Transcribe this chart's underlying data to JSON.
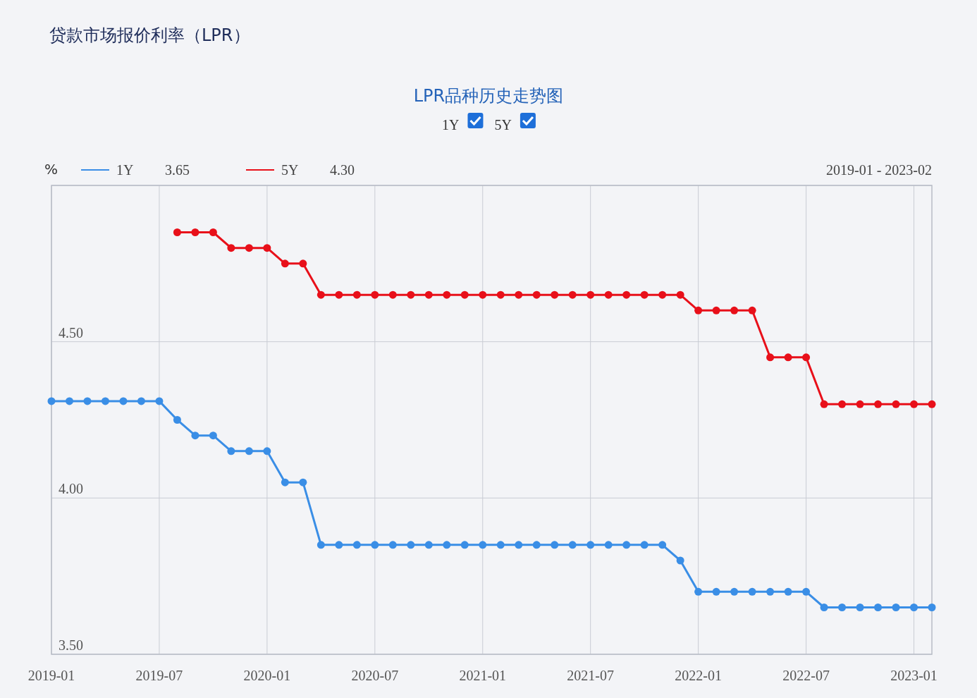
{
  "chart_data": {
    "type": "line",
    "title": "贷款市场报价利率（LPR）",
    "subtitle": "LPR品种历史走势图",
    "ylabel": "%",
    "annotations": [
      "3.65",
      "4.30",
      "2019-01 - 2023-02"
    ],
    "x": [
      "2019-01",
      "2019-02",
      "2019-03",
      "2019-04",
      "2019-05",
      "2019-06",
      "2019-07",
      "2019-08",
      "2019-09",
      "2019-10",
      "2019-11",
      "2019-12",
      "2020-01",
      "2020-02",
      "2020-03",
      "2020-04",
      "2020-05",
      "2020-06",
      "2020-07",
      "2020-08",
      "2020-09",
      "2020-10",
      "2020-11",
      "2020-12",
      "2021-01",
      "2021-02",
      "2021-03",
      "2021-04",
      "2021-05",
      "2021-06",
      "2021-07",
      "2021-08",
      "2021-09",
      "2021-10",
      "2021-11",
      "2021-12",
      "2022-01",
      "2022-02",
      "2022-03",
      "2022-04",
      "2022-05",
      "2022-06",
      "2022-07",
      "2022-08",
      "2022-09",
      "2022-10",
      "2022-11",
      "2022-12",
      "2023-01",
      "2023-02"
    ],
    "series": [
      {
        "name": "1Y",
        "color": "#3a8ee6",
        "values": [
          4.31,
          4.31,
          4.31,
          4.31,
          4.31,
          4.31,
          4.31,
          4.25,
          4.2,
          4.2,
          4.15,
          4.15,
          4.15,
          4.05,
          4.05,
          3.85,
          3.85,
          3.85,
          3.85,
          3.85,
          3.85,
          3.85,
          3.85,
          3.85,
          3.85,
          3.85,
          3.85,
          3.85,
          3.85,
          3.85,
          3.85,
          3.85,
          3.85,
          3.85,
          3.85,
          3.8,
          3.7,
          3.7,
          3.7,
          3.7,
          3.7,
          3.7,
          3.7,
          3.65,
          3.65,
          3.65,
          3.65,
          3.65,
          3.65,
          3.65
        ]
      },
      {
        "name": "5Y",
        "color": "#e8101a",
        "values": [
          null,
          null,
          null,
          null,
          null,
          null,
          null,
          4.85,
          4.85,
          4.85,
          4.8,
          4.8,
          4.8,
          4.75,
          4.75,
          4.65,
          4.65,
          4.65,
          4.65,
          4.65,
          4.65,
          4.65,
          4.65,
          4.65,
          4.65,
          4.65,
          4.65,
          4.65,
          4.65,
          4.65,
          4.65,
          4.65,
          4.65,
          4.65,
          4.65,
          4.65,
          4.6,
          4.6,
          4.6,
          4.6,
          4.45,
          4.45,
          4.45,
          4.3,
          4.3,
          4.3,
          4.3,
          4.3,
          4.3,
          4.3
        ]
      }
    ],
    "xlim": [
      "2019-01",
      "2023-02"
    ],
    "xticks": [
      {
        "value": "2019-01",
        "label": "2019-01"
      },
      {
        "value": "2019-07",
        "label": "2019-07"
      },
      {
        "value": "2020-01",
        "label": "2020-01"
      },
      {
        "value": "2020-07",
        "label": "2020-07"
      },
      {
        "value": "2021-01",
        "label": "2021-01"
      },
      {
        "value": "2021-07",
        "label": "2021-07"
      },
      {
        "value": "2022-01",
        "label": "2022-01"
      },
      {
        "value": "2022-07",
        "label": "2022-07"
      },
      {
        "value": "2023-01",
        "label": "2023-01"
      }
    ],
    "ylim": [
      3.5,
      5.0
    ],
    "yticks": [
      {
        "value": 3.5,
        "label": "3.50"
      },
      {
        "value": 4.0,
        "label": "4.00"
      },
      {
        "value": 4.5,
        "label": "4.50"
      },
      {
        "value": 5.0,
        "label": null
      }
    ],
    "grid": true,
    "legend": "top left",
    "marker": "circle",
    "line_style": "solid"
  }
}
